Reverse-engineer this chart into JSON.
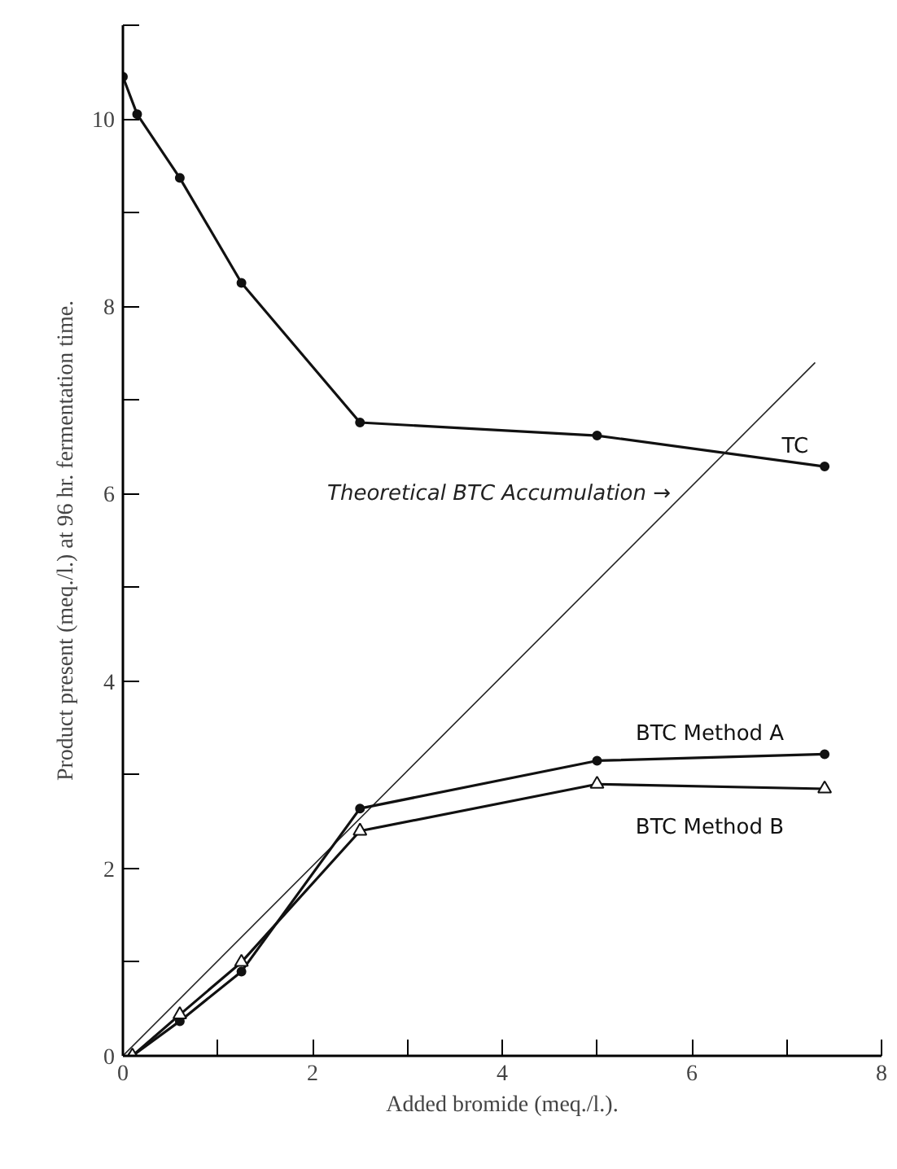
{
  "chart_data": {
    "type": "line",
    "xlabel": "Added bromide (meq./l.).",
    "ylabel": "Product present (meq./l.) at 96 hr. fermentation time.",
    "xlim": [
      0,
      8
    ],
    "ylim": [
      0,
      11
    ],
    "xticks": [
      0,
      {
        "value": 1,
        "label": null
      },
      2,
      {
        "value": 3,
        "label": null
      },
      4,
      {
        "value": 5,
        "label": null
      },
      6,
      {
        "value": 7,
        "label": null
      },
      8
    ],
    "yticks": [
      0,
      {
        "value": 1,
        "label": null
      },
      2,
      {
        "value": 3,
        "label": null
      },
      4,
      {
        "value": 5,
        "label": null
      },
      6,
      {
        "value": 7,
        "label": null
      },
      8,
      {
        "value": 9,
        "label": null
      },
      10,
      {
        "value": 11,
        "label": null
      }
    ],
    "grid": false,
    "series": [
      {
        "name": "TC",
        "color": "#111111",
        "marker": "circle",
        "x": [
          0,
          0.15,
          0.6,
          1.25,
          2.5,
          5,
          7.4
        ],
        "values": [
          10.45,
          10.05,
          9.37,
          8.25,
          6.76,
          6.62,
          6.29
        ]
      },
      {
        "name": "Theoretical BTC Accumulation →",
        "color": "#222222",
        "marker": "none",
        "x": [
          0,
          7.3
        ],
        "values": [
          0,
          7.4
        ]
      },
      {
        "name": "BTC Method A",
        "color": "#111111",
        "marker": "circle",
        "x": [
          0.1,
          0.6,
          1.25,
          2.5,
          5,
          7.4
        ],
        "values": [
          0,
          0.37,
          0.9,
          2.64,
          3.15,
          3.22
        ]
      },
      {
        "name": "BTC Method B",
        "color": "#111111",
        "marker": "triangle",
        "x": [
          0.1,
          0.6,
          1.25,
          2.5,
          5,
          7.4
        ],
        "values": [
          0,
          0.44,
          1.0,
          2.4,
          2.9,
          2.85
        ]
      }
    ]
  }
}
